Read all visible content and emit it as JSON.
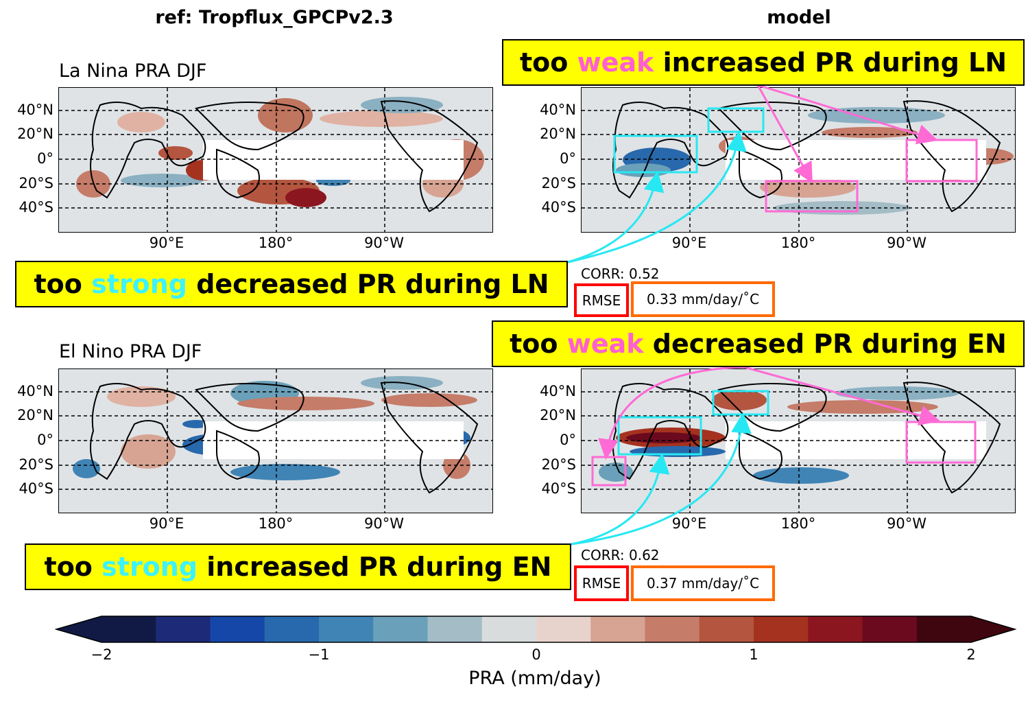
{
  "columns": {
    "ref_title": "ref: Tropflux_GPCPv2.3",
    "model_title": "model"
  },
  "panels": {
    "la_nina_title": "La Nina PRA DJF",
    "el_nino_title": "El Nino PRA DJF"
  },
  "lat_labels": [
    "40°N",
    "20°N",
    "0°",
    "20°S",
    "40°S"
  ],
  "lon_labels": [
    "90°E",
    "180°",
    "90°W"
  ],
  "callouts": {
    "ln_weak": {
      "pre": "too ",
      "hl": "weak",
      "post": " increased PR during LN"
    },
    "ln_strong": {
      "pre": "too ",
      "hl": "strong",
      "post": " decreased PR during LN"
    },
    "en_weak": {
      "pre": "too ",
      "hl": "weak",
      "post": " decreased PR during EN"
    },
    "en_strong": {
      "pre": "too ",
      "hl": "strong",
      "post": " increased PR during EN"
    }
  },
  "stats": {
    "ln": {
      "corr": "CORR: 0.52",
      "rmse_label": "RMSE",
      "rmse_value": "0.33 mm/day/˚C"
    },
    "en": {
      "corr": "CORR: 0.62",
      "rmse_label": "RMSE",
      "rmse_value": "0.37 mm/day/˚C"
    }
  },
  "colorbar": {
    "label": "PRA (mm/day)",
    "ticks": [
      "−2",
      "−1",
      "0",
      "1",
      "2"
    ],
    "colors": [
      "#111a45",
      "#1d2a78",
      "#1547a8",
      "#2868ac",
      "#3f84b5",
      "#6aa0b9",
      "#a3bcc6",
      "#d9dcdd",
      "#e8d3cc",
      "#d7a493",
      "#c57c69",
      "#b4553f",
      "#a5321f",
      "#8c1620",
      "#6b0a1e",
      "#3f0610"
    ],
    "vmin": -2,
    "vmax": 2
  },
  "colors": {
    "weak_box": "#ff6ad5",
    "strong_box": "#27e8f2",
    "callout_bg": "#ffff00",
    "rmse_label_box": "#ff0000",
    "rmse_value_box": "#ff6a00"
  }
}
